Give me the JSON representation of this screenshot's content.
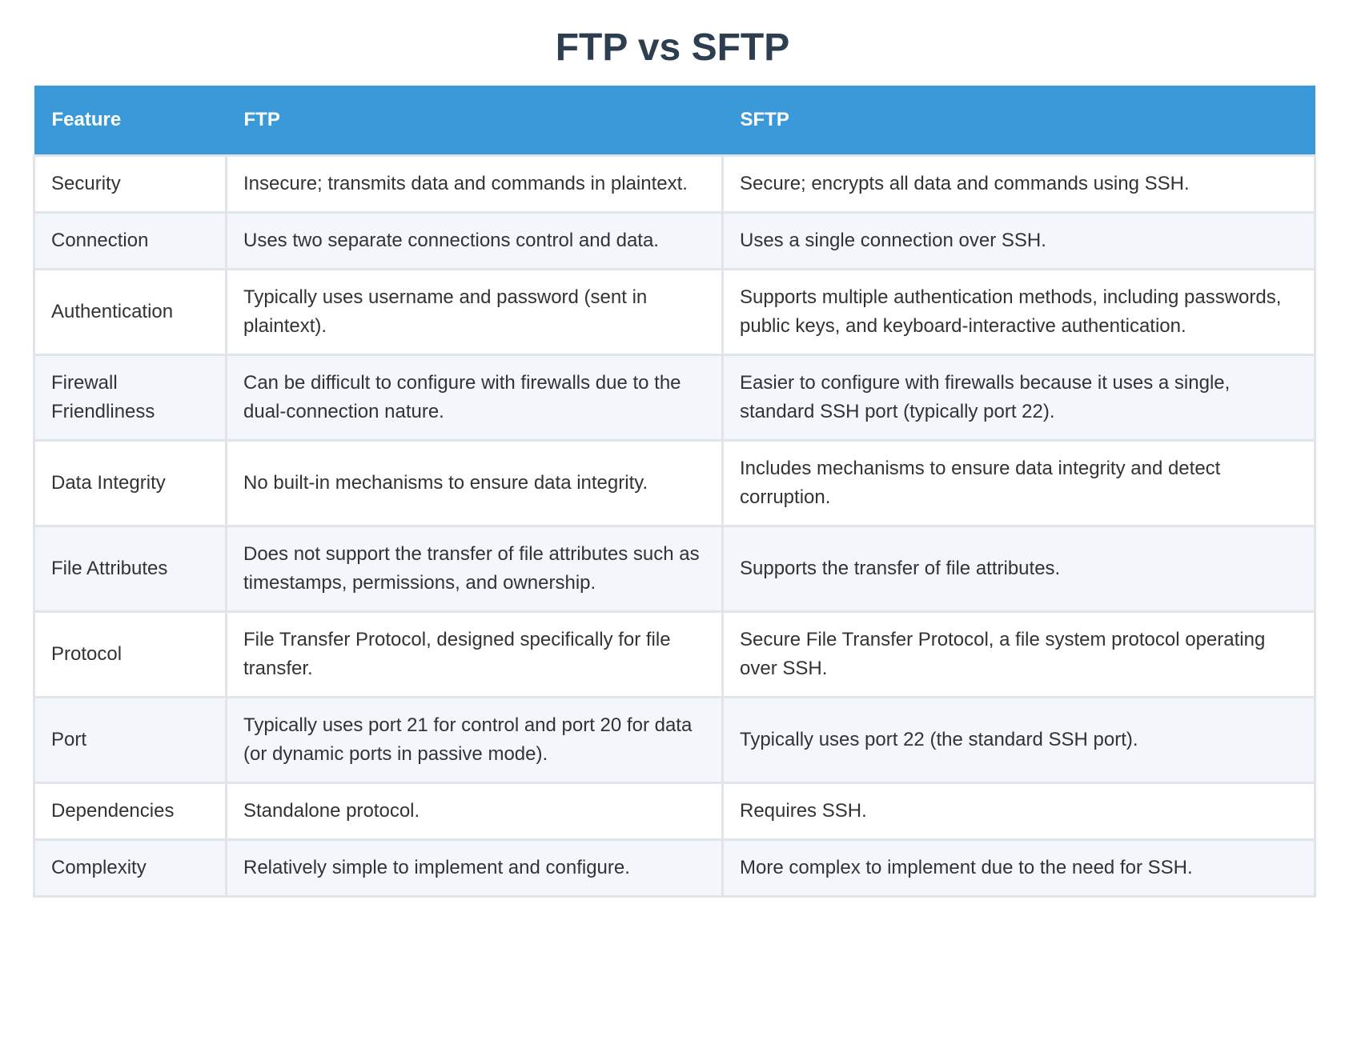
{
  "title": "FTP vs SFTP",
  "table": {
    "headers": [
      "Feature",
      "FTP",
      "SFTP"
    ],
    "rows": [
      [
        "Security",
        "Insecure; transmits data and commands in plaintext.",
        "Secure; encrypts all data and commands using SSH."
      ],
      [
        "Connection",
        "Uses two separate connections control and data.",
        "Uses a single connection over SSH."
      ],
      [
        "Authentication",
        "Typically uses username and password (sent in plaintext).",
        "Supports multiple authentication methods, including passwords, public keys, and keyboard-interactive authentication."
      ],
      [
        "Firewall Friendliness",
        "Can be difficult to configure with firewalls due to the dual-connection nature.",
        "Easier to configure with firewalls because it uses a single, standard SSH port (typically port 22)."
      ],
      [
        "Data Integrity",
        "No built-in mechanisms to ensure data integrity.",
        "Includes mechanisms to ensure data integrity and detect corruption."
      ],
      [
        "File Attributes",
        "Does not support the transfer of file attributes such as timestamps, permissions, and ownership.",
        "Supports the transfer of file attributes."
      ],
      [
        "Protocol",
        "File Transfer Protocol, designed specifically for file transfer.",
        "Secure File Transfer Protocol, a file system protocol operating over SSH."
      ],
      [
        "Port",
        "Typically uses port 21 for control and port 20 for data (or dynamic ports in passive mode).",
        "Typically uses port 22 (the standard SSH port)."
      ],
      [
        "Dependencies",
        "Standalone protocol.",
        "Requires SSH."
      ],
      [
        "Complexity",
        "Relatively simple to implement and configure.",
        "More complex to implement due to the need for SSH."
      ]
    ]
  }
}
